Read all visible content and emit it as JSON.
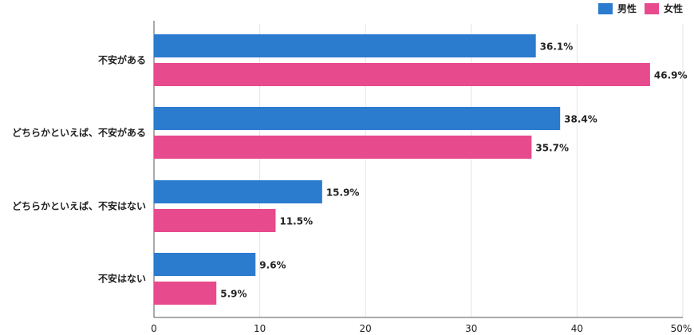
{
  "chart_data": {
    "type": "bar",
    "orientation": "horizontal",
    "categories": [
      "不安がある",
      "どちらかといえば、不安がある",
      "どちらかといえば、不安はない",
      "不安はない"
    ],
    "series": [
      {
        "name": "男性",
        "color": "#2b7bce",
        "values": [
          36.1,
          38.4,
          15.9,
          9.6
        ]
      },
      {
        "name": "女性",
        "color": "#e84a8e",
        "values": [
          46.9,
          35.7,
          11.5,
          5.9
        ]
      }
    ],
    "value_labels": [
      [
        "36.1%",
        "38.4%",
        "15.9%",
        "9.6%"
      ],
      [
        "46.9%",
        "35.7%",
        "11.5%",
        "5.9%"
      ]
    ],
    "xlim": [
      0,
      50
    ],
    "x_ticks": [
      "0",
      "10",
      "20",
      "30",
      "40",
      "50%"
    ],
    "grid": true,
    "legend_position": "top-right"
  }
}
